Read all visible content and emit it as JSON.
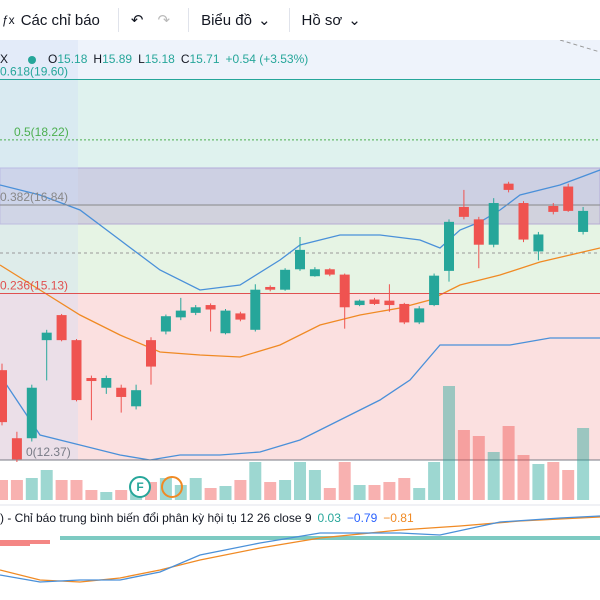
{
  "toolbar": {
    "indicators": "Các chỉ báo",
    "chart": "Biểu đồ",
    "profile": "Hồ sơ"
  },
  "legend": {
    "symbol": "X",
    "open_label": "O",
    "open": "15.18",
    "high_label": "H",
    "high": "15.89",
    "low_label": "L",
    "low": "15.18",
    "close_label": "C",
    "close": "15.71",
    "change": "+0.54 (+3.53%)"
  },
  "macd_legend": {
    "title": ") - Chỉ báo trung bình biến đổi phân kỳ hội tụ 12 26 close 9",
    "histogram": "0.03",
    "macd": "−0.79",
    "signal": "−0.81"
  },
  "markers": [
    "F"
  ],
  "chart_data": {
    "type": "candlestick",
    "log_scale": true,
    "ylim": [
      12.34,
      20.56
    ],
    "up_color": "#26a69a",
    "down_color": "#ef5350",
    "open": [
      13.79,
      12.7,
      12.7,
      14.3,
      14.74,
      14.3,
      13.66,
      13.5,
      13.5,
      13.2,
      14.3,
      14.45,
      14.7,
      14.78,
      14.92,
      14.42,
      14.77,
      14.48,
      15.25,
      15.2,
      15.58,
      15.45,
      15.58,
      15.48,
      14.92,
      15.02,
      15.0,
      14.94,
      14.61,
      14.92,
      15.55,
      16.8,
      16.55,
      16.05,
      17.28,
      16.88,
      15.92,
      16.82,
      17.22,
      16.3
    ],
    "high": [
      13.9,
      12.8,
      13.55,
      14.48,
      14.76,
      14.32,
      13.7,
      13.7,
      13.55,
      13.55,
      14.35,
      14.75,
      15.05,
      14.92,
      14.95,
      14.85,
      14.8,
      15.3,
      15.28,
      15.6,
      16.2,
      15.62,
      15.6,
      15.5,
      15.02,
      15.05,
      15.3,
      14.96,
      14.9,
      15.5,
      16.55,
      17.15,
      16.6,
      16.98,
      17.32,
      16.92,
      16.3,
      16.88,
      17.28,
      16.8
    ],
    "low": [
      12.9,
      12.34,
      12.65,
      13.62,
      14.28,
      13.28,
      12.98,
      13.4,
      13.1,
      13.15,
      13.55,
      14.4,
      14.65,
      14.74,
      14.45,
      14.4,
      14.63,
      14.45,
      15.17,
      15.18,
      15.55,
      15.44,
      15.45,
      14.5,
      14.9,
      14.92,
      14.8,
      14.58,
      14.58,
      14.9,
      15.35,
      16.55,
      15.6,
      16.0,
      17.1,
      16.1,
      15.75,
      16.65,
      16.7,
      16.25
    ],
    "close": [
      12.95,
      12.38,
      13.5,
      14.43,
      14.3,
      13.3,
      13.61,
      13.66,
      13.35,
      13.46,
      13.85,
      14.72,
      14.82,
      14.88,
      14.84,
      14.82,
      14.66,
      15.2,
      15.2,
      15.57,
      15.95,
      15.58,
      15.48,
      14.88,
      15.0,
      14.94,
      14.92,
      14.61,
      14.86,
      15.46,
      16.5,
      16.6,
      16.05,
      16.88,
      17.15,
      16.15,
      16.25,
      16.7,
      16.72,
      16.72
    ],
    "volume": [
      20,
      20,
      22,
      30,
      20,
      20,
      10,
      8,
      10,
      12,
      18,
      22,
      15,
      22,
      12,
      14,
      20,
      38,
      18,
      20,
      38,
      30,
      12,
      38,
      15,
      15,
      18,
      22,
      12,
      38,
      114,
      70,
      64,
      48,
      74,
      45,
      36,
      38,
      30,
      72
    ],
    "fib_levels": [
      {
        "label": "0.618(19.60)",
        "value": 19.6,
        "color": "#26a69a"
      },
      {
        "label": "0.5(18.22)",
        "value": 18.22,
        "color": "#4caf50"
      },
      {
        "label": "0.382(16.84)",
        "value": 16.84,
        "color": "#888888"
      },
      {
        "label": "0.236(15.13)",
        "value": 15.13,
        "color": "#e05050"
      },
      {
        "label": "0(12.37)",
        "value": 12.37,
        "color": "#787b86"
      }
    ]
  }
}
